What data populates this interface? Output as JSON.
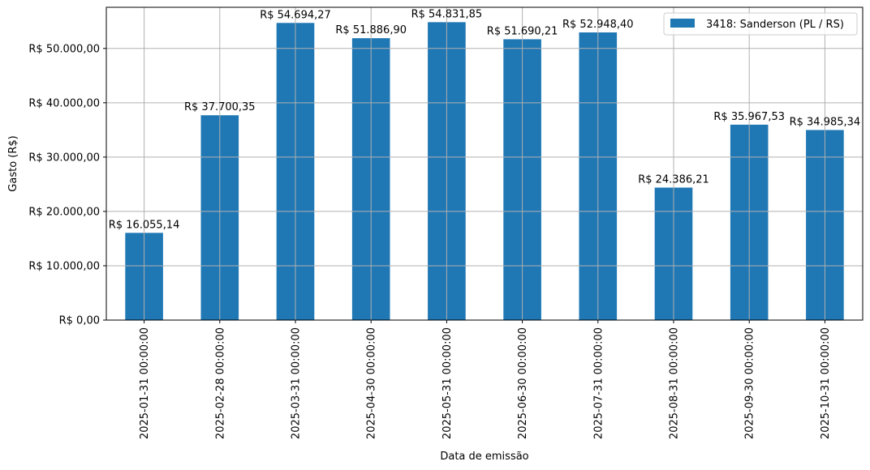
{
  "chart_data": {
    "type": "bar",
    "title": "",
    "xlabel": "Data de emissão",
    "ylabel": "Gasto (R$)",
    "categories": [
      "2025-01-31 00:00:00",
      "2025-02-28 00:00:00",
      "2025-03-31 00:00:00",
      "2025-04-30 00:00:00",
      "2025-05-31 00:00:00",
      "2025-06-30 00:00:00",
      "2025-07-31 00:00:00",
      "2025-08-31 00:00:00",
      "2025-09-30 00:00:00",
      "2025-10-31 00:00:00"
    ],
    "series": [
      {
        "name": "3418: Sanderson (PL / RS)",
        "color": "#1f77b4",
        "values": [
          16055.14,
          37700.35,
          54694.27,
          51886.9,
          54831.85,
          51690.21,
          52948.4,
          24386.21,
          35967.53,
          34985.34
        ],
        "value_labels": [
          "R$ 16.055,14",
          "R$ 37.700,35",
          "R$ 54.694,27",
          "R$ 51.886,90",
          "R$ 54.831,85",
          "R$ 51.690,21",
          "R$ 52.948,40",
          "R$ 24.386,21",
          "R$ 35.967,53",
          "R$ 34.985,34"
        ]
      }
    ],
    "ylim": [
      0,
      57573
    ],
    "yticks": [
      0,
      10000,
      20000,
      30000,
      40000,
      50000
    ],
    "ytick_labels": [
      "R$ 0,00",
      "R$ 10.000,00",
      "R$ 20.000,00",
      "R$ 30.000,00",
      "R$ 40.000,00",
      "R$ 50.000,00"
    ],
    "grid": true,
    "legend_position": "top-right"
  }
}
